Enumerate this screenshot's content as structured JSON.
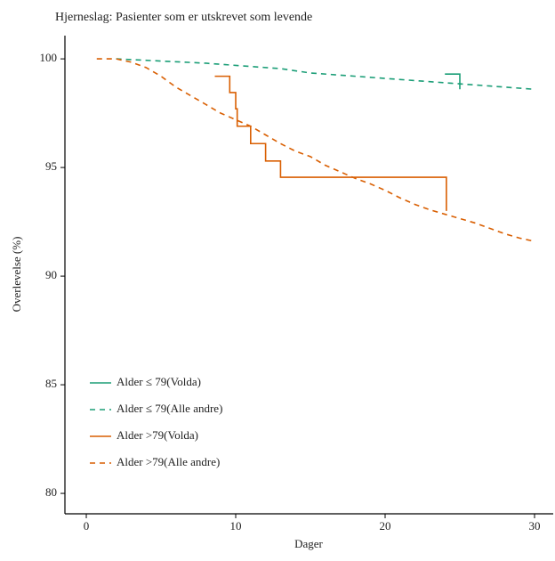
{
  "chart_data": {
    "type": "line",
    "title": "Hjerneslag: Pasienter som er utskrevet som levende",
    "x_label": "Dager",
    "y_label": "Overlevelse (%)",
    "xlim": [
      -1.43,
      31.25
    ],
    "ylim": [
      79.06,
      101.07
    ],
    "xticks": [
      0,
      10,
      20,
      30
    ],
    "yticks": [
      80,
      85,
      90,
      95,
      100
    ],
    "legend_position": "bottom-left",
    "series": [
      {
        "name": "Alder ≤ 79(Volda)",
        "color": "#1b9e77",
        "dashed": false,
        "x": [
          24,
          25,
          25
        ],
        "values": [
          99.3,
          99.3,
          98.6
        ]
      },
      {
        "name": "Alder ≤ 79(Alle andre)",
        "color": "#1b9e77",
        "dashed": true,
        "x": [
          2,
          5,
          8,
          10,
          13,
          15,
          18,
          21,
          24,
          27,
          30
        ],
        "values": [
          100,
          99.9,
          99.8,
          99.7,
          99.55,
          99.35,
          99.2,
          99.05,
          98.9,
          98.75,
          98.6
        ]
      },
      {
        "name": "Alder >79(Volda)",
        "color": "#d95f02",
        "dashed": false,
        "x": [
          8.6,
          9.6,
          9.6,
          10,
          10,
          10.1,
          10.1,
          11,
          11,
          12,
          12,
          13,
          13,
          24.1,
          24.1
        ],
        "values": [
          99.2,
          99.2,
          98.45,
          98.45,
          97.7,
          97.7,
          96.9,
          96.9,
          96.1,
          96.1,
          95.3,
          95.3,
          94.55,
          94.55,
          93.0
        ]
      },
      {
        "name": "Alder >79(Alle andre)",
        "color": "#d95f02",
        "dashed": true,
        "x": [
          0.7,
          2,
          3,
          4,
          5,
          6,
          7,
          8,
          9,
          10,
          11,
          12,
          13,
          14,
          15,
          16,
          17,
          18,
          19,
          20,
          21,
          22,
          23,
          24,
          25,
          26,
          27,
          28,
          29,
          30
        ],
        "values": [
          100,
          100,
          99.85,
          99.6,
          99.2,
          98.7,
          98.3,
          97.9,
          97.5,
          97.2,
          96.9,
          96.5,
          96.1,
          95.75,
          95.5,
          95.1,
          94.8,
          94.5,
          94.25,
          93.95,
          93.6,
          93.3,
          93.05,
          92.85,
          92.65,
          92.45,
          92.2,
          91.95,
          91.75,
          91.6
        ]
      }
    ]
  }
}
